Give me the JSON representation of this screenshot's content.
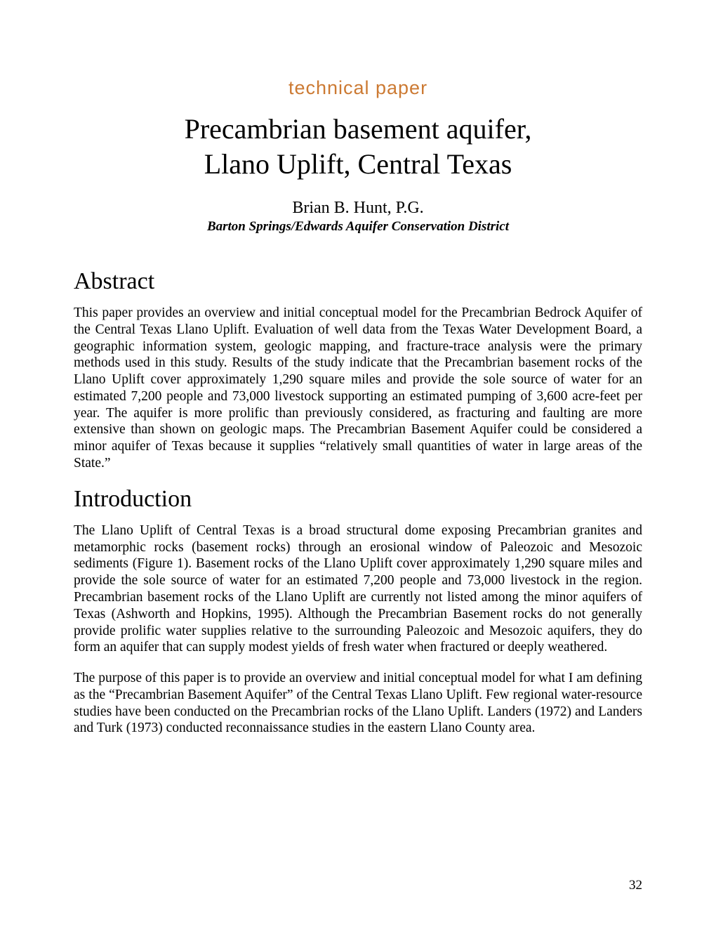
{
  "category": {
    "label": "technical paper",
    "color": "#cc7a33"
  },
  "title_line1": "Precambrian basement aquifer,",
  "title_line2": "Llano Uplift, Central Texas",
  "author": "Brian B. Hunt, P.G.",
  "affiliation": "Barton Springs/Edwards Aquifer Conservation District",
  "sections": {
    "abstract": {
      "heading": "Abstract",
      "body": "This paper provides an overview and initial conceptual model for the Precambrian Bedrock Aquifer of the Central Texas Llano Uplift. Evaluation of well data from the Texas Water Development Board, a geographic information system, geologic mapping, and fracture-trace analysis were the primary methods used in this study. Results of the study indicate that the Precambrian basement rocks of the Llano Uplift cover approximately 1,290 square miles and provide the sole source of water for an estimated 7,200 people and 73,000 livestock supporting an estimated pumping of 3,600 acre-feet per year. The aquifer is more prolific than previously considered, as fracturing and faulting are more extensive than shown on geologic maps. The Precambrian Basement Aquifer could be considered a minor aquifer of Texas because it supplies “relatively small quantities of water in large areas of the State.”"
    },
    "introduction": {
      "heading": "Introduction",
      "body1": "The Llano Uplift of Central Texas is a broad structural dome exposing Precambrian granites and metamorphic rocks (basement rocks) through an erosional window of Paleozoic and Mesozoic sediments (Figure 1). Basement rocks of the Llano Uplift cover approximately 1,290 square miles and provide the sole source of water for an estimated 7,200 people and 73,000 livestock in the region.  Precambrian basement rocks of the Llano Uplift are currently not listed among the minor aquifers of Texas (Ashworth and Hopkins, 1995). Although the Precambrian Basement rocks do not generally provide prolific water supplies relative to the surrounding Paleozoic and Mesozoic aquifers, they do form an aquifer that can supply modest yields of fresh water when fractured or deeply weathered.",
      "body2": "The purpose of this paper is to provide an overview and initial conceptual model for what I am defining as the “Precambrian Basement Aquifer” of the Central Texas Llano Uplift. Few regional water-resource studies have been conducted on the Precambrian rocks of the Llano Uplift. Landers (1972) and Landers and Turk (1973) conducted reconnaissance studies in the eastern Llano County area."
    }
  },
  "page_number": "32"
}
